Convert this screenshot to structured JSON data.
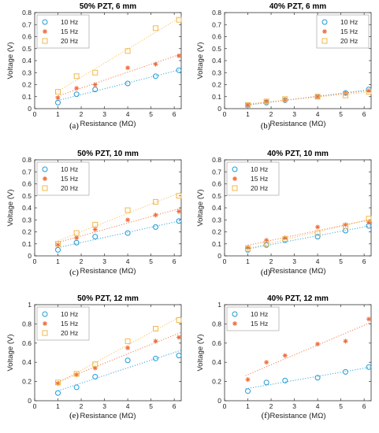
{
  "colors": {
    "10 Hz": "#1f9ad6",
    "15 Hz": "#ef6a3a",
    "20 Hz": "#f2b84b"
  },
  "markers": {
    "10 Hz": "circle",
    "15 Hz": "asterisk",
    "20 Hz": "square"
  },
  "chart_data": [
    {
      "panel_label": "(a)",
      "type": "scatter",
      "title": "50% PZT, 6 mm",
      "xlabel": "Resistance (MΩ)",
      "ylabel": "Voltage (V)",
      "xlim": [
        0,
        6.3
      ],
      "ylim": [
        0,
        0.8
      ],
      "xticks": [
        0,
        1,
        2,
        3,
        4,
        5,
        6
      ],
      "yticks": [
        0,
        0.1,
        0.2,
        0.3,
        0.4,
        0.5,
        0.6,
        0.7,
        0.8
      ],
      "legend": "top-left",
      "trendlines": "dotted linear",
      "x": [
        1,
        1.8,
        2.6,
        4,
        5.2,
        6.2
      ],
      "series": [
        {
          "name": "10 Hz",
          "values": [
            0.05,
            0.12,
            0.16,
            0.21,
            0.27,
            0.32
          ]
        },
        {
          "name": "15 Hz",
          "values": [
            0.09,
            0.17,
            0.2,
            0.34,
            0.37,
            0.44
          ]
        },
        {
          "name": "20 Hz",
          "values": [
            0.14,
            0.27,
            0.3,
            0.48,
            0.67,
            0.74
          ]
        }
      ]
    },
    {
      "panel_label": "(b)",
      "type": "scatter",
      "title": "40% PZT, 6 mm",
      "xlabel": "Resistance (MΩ)",
      "ylabel": "Voltage (V)",
      "xlim": [
        0,
        6.3
      ],
      "ylim": [
        0,
        0.8
      ],
      "xticks": [
        0,
        1,
        2,
        3,
        4,
        5,
        6
      ],
      "yticks": [
        0,
        0.1,
        0.2,
        0.3,
        0.4,
        0.5,
        0.6,
        0.7,
        0.8
      ],
      "legend": "top-right",
      "trendlines": "dotted linear",
      "x": [
        1,
        1.8,
        2.6,
        4,
        5.2,
        6.2
      ],
      "series": [
        {
          "name": "10 Hz",
          "values": [
            0.03,
            0.05,
            0.07,
            0.1,
            0.13,
            0.16
          ]
        },
        {
          "name": "15 Hz",
          "values": [
            0.03,
            0.06,
            0.07,
            0.1,
            0.13,
            0.15
          ]
        },
        {
          "name": "20 Hz",
          "values": [
            0.03,
            0.06,
            0.08,
            0.1,
            0.11,
            0.14
          ]
        }
      ]
    },
    {
      "panel_label": "(c)",
      "type": "scatter",
      "title": "50% PZT, 10 mm",
      "xlabel": "Resistance (MΩ)",
      "ylabel": "Voltage (V)",
      "xlim": [
        0,
        6.3
      ],
      "ylim": [
        0,
        0.8
      ],
      "xticks": [
        0,
        1,
        2,
        3,
        4,
        5,
        6
      ],
      "yticks": [
        0,
        0.1,
        0.2,
        0.3,
        0.4,
        0.5,
        0.6,
        0.7,
        0.8
      ],
      "legend": "top-left",
      "trendlines": "dotted linear",
      "x": [
        1,
        1.8,
        2.6,
        4,
        5.2,
        6.2
      ],
      "series": [
        {
          "name": "10 Hz",
          "values": [
            0.05,
            0.11,
            0.16,
            0.19,
            0.24,
            0.29
          ]
        },
        {
          "name": "15 Hz",
          "values": [
            0.09,
            0.15,
            0.22,
            0.3,
            0.34,
            0.37
          ]
        },
        {
          "name": "20 Hz",
          "values": [
            0.1,
            0.19,
            0.26,
            0.38,
            0.45,
            0.5
          ]
        }
      ]
    },
    {
      "panel_label": "(d)",
      "type": "scatter",
      "title": "40% PZT, 10 mm",
      "xlabel": "Resistance (MΩ)",
      "ylabel": "Voltage (V)",
      "xlim": [
        0,
        6.3
      ],
      "ylim": [
        0,
        0.8
      ],
      "xticks": [
        0,
        1,
        2,
        3,
        4,
        5,
        6
      ],
      "yticks": [
        0,
        0.1,
        0.2,
        0.3,
        0.4,
        0.5,
        0.6,
        0.7,
        0.8
      ],
      "legend": "top-left",
      "trendlines": "dotted linear",
      "x": [
        1,
        1.8,
        2.6,
        4,
        5.2,
        6.2
      ],
      "series": [
        {
          "name": "10 Hz",
          "values": [
            0.05,
            0.09,
            0.13,
            0.16,
            0.21,
            0.25
          ]
        },
        {
          "name": "15 Hz",
          "values": [
            0.07,
            0.13,
            0.15,
            0.24,
            0.26,
            0.28
          ]
        },
        {
          "name": "20 Hz",
          "values": [
            0.06,
            0.1,
            0.14,
            0.19,
            0.25,
            0.31
          ]
        }
      ]
    },
    {
      "panel_label": "(e)",
      "type": "scatter",
      "title": "50% PZT, 12 mm",
      "xlabel": "Resistance (MΩ)",
      "ylabel": "Voltage (V)",
      "xlim": [
        0,
        6.3
      ],
      "ylim": [
        0,
        1
      ],
      "xticks": [
        0,
        1,
        2,
        3,
        4,
        5,
        6
      ],
      "yticks": [
        0,
        0.2,
        0.4,
        0.6,
        0.8,
        1
      ],
      "legend": "top-left",
      "trendlines": "dotted linear",
      "x": [
        1,
        1.8,
        2.6,
        4,
        5.2,
        6.2
      ],
      "series": [
        {
          "name": "10 Hz",
          "values": [
            0.08,
            0.14,
            0.25,
            0.42,
            0.44,
            0.47
          ]
        },
        {
          "name": "15 Hz",
          "values": [
            0.18,
            0.27,
            0.34,
            0.55,
            0.62,
            0.66
          ]
        },
        {
          "name": "20 Hz",
          "values": [
            0.19,
            0.28,
            0.38,
            0.62,
            0.75,
            0.84
          ]
        }
      ]
    },
    {
      "panel_label": "(f)",
      "type": "scatter",
      "title": "40% PZT, 12 mm",
      "xlabel": "Resistance (MΩ)",
      "ylabel": "Voltage (V)",
      "xlim": [
        0,
        6.3
      ],
      "ylim": [
        0,
        1
      ],
      "xticks": [
        0,
        1,
        2,
        3,
        4,
        5,
        6
      ],
      "yticks": [
        0,
        0.2,
        0.4,
        0.6,
        0.8,
        1
      ],
      "legend": "top-left",
      "trendlines": "dotted linear",
      "x": [
        1,
        1.8,
        2.6,
        4,
        5.2,
        6.2
      ],
      "series": [
        {
          "name": "10 Hz",
          "values": [
            0.1,
            0.19,
            0.21,
            0.24,
            0.3,
            0.35
          ]
        },
        {
          "name": "15 Hz",
          "values": [
            0.22,
            0.4,
            0.47,
            0.59,
            0.62,
            0.85
          ]
        }
      ]
    }
  ]
}
